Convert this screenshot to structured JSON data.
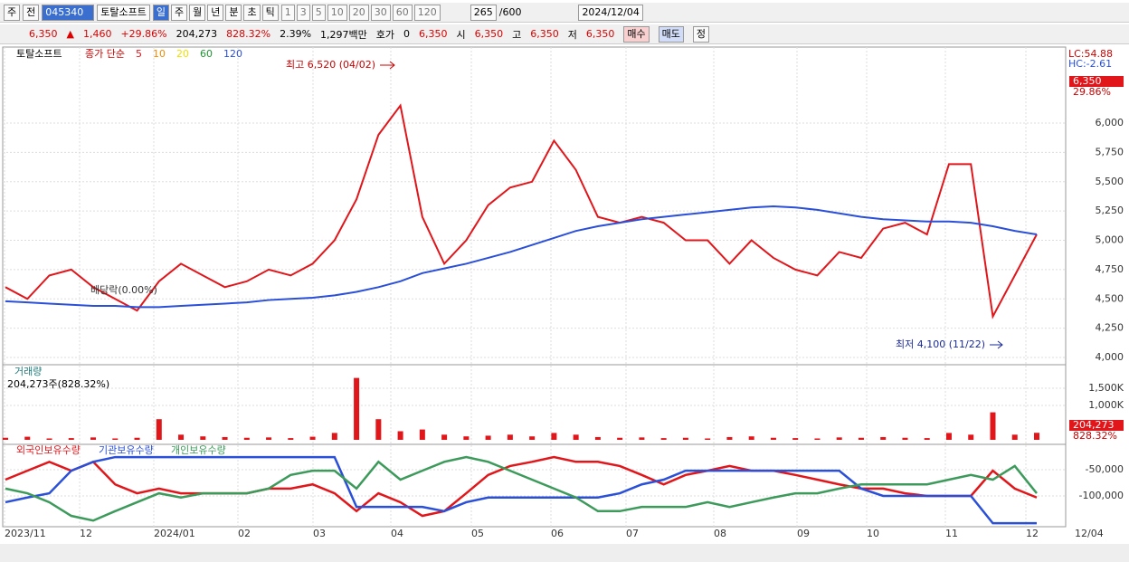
{
  "toolbar": {
    "period_label": "주",
    "prev": "전",
    "code": "045340",
    "name": "토탈소프트",
    "periods": [
      "일",
      "주",
      "월",
      "년",
      "분",
      "초",
      "틱"
    ],
    "intervals": [
      "1",
      "3",
      "5",
      "10",
      "20",
      "30",
      "60",
      "120"
    ],
    "count": "265",
    "max": "/600",
    "date": "2024/12/04"
  },
  "quote": {
    "price": "6,350",
    "change": "1,460",
    "change_pct": "+29.86%",
    "volume": "204,273",
    "volume_ratio": "828.32%",
    "turnover_rate": "2.39%",
    "amount": "1,297백만",
    "hoga_label": "호가",
    "hoga": "0",
    "hoga_price": "6,350",
    "open_label": "시",
    "open": "6,350",
    "high_label": "고",
    "high": "6,350",
    "low_label": "저",
    "low": "6,350",
    "buy": "매수",
    "sell": "매도",
    "correct": "정"
  },
  "chart": {
    "price": {
      "name": "토탈소프트",
      "legend_title": "종가 단순",
      "ma_labels": [
        {
          "label": "5",
          "color": "#e0161b"
        },
        {
          "label": "10",
          "color": "#f08c00"
        },
        {
          "label": "20",
          "color": "#f0e000"
        },
        {
          "label": "60",
          "color": "#1e9632"
        },
        {
          "label": "120",
          "color": "#2a4fd8"
        }
      ],
      "ylim": [
        3946,
        6649
      ],
      "yticks": [
        {
          "value": 4000,
          "label": "4,000"
        },
        {
          "value": 4250,
          "label": "4,250"
        },
        {
          "value": 4500,
          "label": "4,500"
        },
        {
          "value": 4750,
          "label": "4,750"
        },
        {
          "value": 5000,
          "label": "5,000"
        },
        {
          "value": 5250,
          "label": "5,250"
        },
        {
          "value": 5500,
          "label": "5,500"
        },
        {
          "value": 5750,
          "label": "5,750"
        },
        {
          "value": 6000,
          "label": "6,000"
        }
      ],
      "series": [
        {
          "name": "5",
          "color": "#e0161b",
          "values": [
            4600,
            4500,
            4700,
            4750,
            4600,
            4500,
            4400,
            4650,
            4800,
            4700,
            4600,
            4650,
            4750,
            4700,
            4800,
            5000,
            5350,
            5900,
            6150,
            5200,
            4800,
            5000,
            5300,
            5450,
            5500,
            5850,
            5600,
            5200,
            5150,
            5200,
            5150,
            5000,
            5000,
            4800,
            5000,
            4850,
            4750,
            4700,
            4900,
            4850,
            5100,
            5150,
            5050,
            5650,
            5650,
            4350,
            4700,
            5050
          ]
        },
        {
          "name": "120",
          "color": "#2a4fd8",
          "values": [
            4480,
            4470,
            4460,
            4450,
            4440,
            4440,
            4430,
            4430,
            4440,
            4450,
            4460,
            4470,
            4490,
            4500,
            4510,
            4530,
            4560,
            4600,
            4650,
            4720,
            4760,
            4800,
            4850,
            4900,
            4960,
            5020,
            5080,
            5120,
            5150,
            5180,
            5200,
            5220,
            5240,
            5260,
            5280,
            5290,
            5280,
            5260,
            5230,
            5200,
            5180,
            5170,
            5160,
            5160,
            5150,
            5120,
            5080,
            5050
          ]
        }
      ],
      "high_note": "최고 6,520 (04/02)",
      "low_note": "최저 4,100 (11/22)",
      "dividend_note": "배당락(0.00%)",
      "lc": "LC:54.88",
      "hc": "HC:-2.61",
      "last_price": "6,350",
      "last_pct": "29.86%"
    },
    "volume": {
      "title": "거래량",
      "summary": "204,273주(828.32%)",
      "color": "#e0161b",
      "ylim": [
        0,
        2158000
      ],
      "yticks": [
        {
          "value": 1000000,
          "label": "1,000K"
        },
        {
          "value": 1500000,
          "label": "1,500K"
        }
      ],
      "values": [
        60000,
        90000,
        40000,
        50000,
        70000,
        40000,
        60000,
        600000,
        150000,
        100000,
        80000,
        60000,
        70000,
        50000,
        90000,
        200000,
        1800000,
        600000,
        250000,
        300000,
        150000,
        100000,
        120000,
        150000,
        100000,
        200000,
        150000,
        80000,
        60000,
        70000,
        50000,
        60000,
        40000,
        80000,
        100000,
        60000,
        50000,
        40000,
        70000,
        60000,
        80000,
        60000,
        50000,
        200000,
        150000,
        800000,
        150000,
        204273
      ],
      "last_label": "204,273",
      "last_pct": "828.32%"
    },
    "holdings": {
      "ylim": [
        -155200,
        -3450
      ],
      "yticks": [
        {
          "value": -50000,
          "label": "-50,000"
        },
        {
          "value": -100000,
          "label": "-100,000"
        }
      ],
      "series": [
        {
          "name": "외국인보유수량",
          "color": "#e0161b",
          "values": [
            -69000,
            -52000,
            -35000,
            -52000,
            -35000,
            -78000,
            -95000,
            -86000,
            -95000,
            -95000,
            -95000,
            -95000,
            -86000,
            -86000,
            -78000,
            -95000,
            -129000,
            -95000,
            -112000,
            -138000,
            -129000,
            -95000,
            -60000,
            -43000,
            -35000,
            -26000,
            -35000,
            -35000,
            -43000,
            -60000,
            -78000,
            -60000,
            -52000,
            -43000,
            -52000,
            -52000,
            -60000,
            -69000,
            -78000,
            -86000,
            -86000,
            -95000,
            -100000,
            -100000,
            -100000,
            -52000,
            -86000,
            -103000
          ]
        },
        {
          "name": "기관보유수량",
          "color": "#2a4fd8",
          "values": [
            -112000,
            -103000,
            -95000,
            -52000,
            -35000,
            -26000,
            -26000,
            -26000,
            -26000,
            -26000,
            -26000,
            -26000,
            -26000,
            -26000,
            -26000,
            -26000,
            -121000,
            -121000,
            -121000,
            -121000,
            -129000,
            -112000,
            -103000,
            -103000,
            -103000,
            -103000,
            -103000,
            -103000,
            -95000,
            -78000,
            -69000,
            -52000,
            -52000,
            -52000,
            -52000,
            -52000,
            -52000,
            -52000,
            -52000,
            -86000,
            -100000,
            -100000,
            -100000,
            -100000,
            -100000,
            -152000,
            -152000,
            -152000
          ]
        },
        {
          "name": "개인보유수량",
          "color": "#3c9a5a",
          "values": [
            -86000,
            -95000,
            -112000,
            -138000,
            -147000,
            -129000,
            -112000,
            -95000,
            -103000,
            -95000,
            -95000,
            -95000,
            -86000,
            -60000,
            -52000,
            -52000,
            -86000,
            -35000,
            -69000,
            -52000,
            -35000,
            -26000,
            -35000,
            -52000,
            -69000,
            -86000,
            -103000,
            -129000,
            -129000,
            -121000,
            -121000,
            -121000,
            -112000,
            -121000,
            -112000,
            -103000,
            -95000,
            -95000,
            -86000,
            -78000,
            -78000,
            -78000,
            -78000,
            -69000,
            -60000,
            -69000,
            -43000,
            -95000
          ]
        }
      ]
    },
    "months": [
      "2023/11",
      "12",
      "2024/01",
      "02",
      "03",
      "04",
      "05",
      "06",
      "07",
      "08",
      "09",
      "10",
      "11",
      "12",
      "12/04"
    ]
  }
}
